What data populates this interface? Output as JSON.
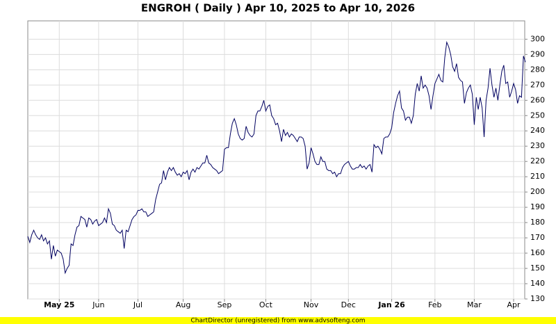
{
  "chart_data": {
    "type": "line",
    "title": "ENGROH ( Daily ) Apr 10, 2025 to Apr 10, 2026",
    "footer": "ChartDirector (unregistered) from www.advsofteng.com",
    "color": "#000060",
    "grid": true,
    "ylim": [
      130,
      312
    ],
    "yticks": [
      130,
      140,
      150,
      160,
      170,
      180,
      190,
      200,
      210,
      220,
      230,
      240,
      250,
      260,
      270,
      280,
      290,
      300
    ],
    "xticks": [
      {
        "value": 16,
        "label": "May 25"
      },
      {
        "value": 36,
        "label": "Jun"
      },
      {
        "value": 56,
        "label": "Jul"
      },
      {
        "value": 79,
        "label": "Aug"
      },
      {
        "value": 100,
        "label": "Sep"
      },
      {
        "value": 121,
        "label": "Oct"
      },
      {
        "value": 144,
        "label": "Nov"
      },
      {
        "value": 163,
        "label": "Dec"
      },
      {
        "value": 185,
        "label": "Jan 26"
      },
      {
        "value": 207,
        "label": "Feb"
      },
      {
        "value": 227,
        "label": "Mar"
      },
      {
        "value": 247,
        "label": "Apr"
      }
    ],
    "values": [
      171,
      167,
      172,
      175,
      172,
      170,
      169,
      172,
      168,
      170,
      166,
      168,
      156,
      165,
      158,
      162,
      161,
      160,
      156,
      147,
      150,
      152,
      166,
      165,
      172,
      177,
      178,
      184,
      183,
      182,
      177,
      183,
      182,
      179,
      181,
      182,
      178,
      179,
      180,
      183,
      180,
      189,
      186,
      179,
      178,
      175,
      174,
      173,
      175,
      163,
      175,
      174,
      178,
      182,
      184,
      185,
      188,
      188,
      189,
      187,
      187,
      184,
      185,
      186,
      187,
      195,
      200,
      205,
      206,
      214,
      208,
      213,
      216,
      214,
      216,
      213,
      211,
      212,
      210,
      213,
      212,
      214,
      208,
      213,
      215,
      213,
      216,
      215,
      217,
      219,
      219,
      224,
      219,
      218,
      216,
      215,
      214,
      212,
      213,
      214,
      228,
      229,
      229,
      238,
      245,
      248,
      244,
      238,
      235,
      234,
      235,
      243,
      239,
      237,
      236,
      238,
      250,
      253,
      253,
      256,
      260,
      253,
      256,
      257,
      250,
      248,
      244,
      245,
      240,
      233,
      241,
      237,
      239,
      236,
      238,
      237,
      235,
      233,
      236,
      236,
      235,
      230,
      215,
      219,
      229,
      225,
      220,
      218,
      218,
      223,
      220,
      220,
      215,
      214,
      214,
      212,
      213,
      210,
      212,
      212,
      216,
      218,
      219,
      220,
      217,
      215,
      215,
      216,
      216,
      218,
      216,
      217,
      215,
      217,
      218,
      213,
      231,
      229,
      230,
      228,
      225,
      235,
      236,
      236,
      238,
      242,
      252,
      258,
      263,
      266,
      255,
      253,
      247,
      249,
      249,
      245,
      250,
      264,
      271,
      266,
      276,
      268,
      270,
      268,
      263,
      254,
      263,
      271,
      274,
      277,
      273,
      272,
      288,
      298,
      295,
      290,
      282,
      279,
      284,
      275,
      273,
      272,
      258,
      265,
      268,
      270,
      264,
      244,
      262,
      254,
      262,
      255,
      236,
      260,
      268,
      281,
      270,
      262,
      268,
      260,
      270,
      279,
      283,
      271,
      272,
      262,
      266,
      271,
      267,
      258,
      263,
      262,
      289,
      285
    ]
  }
}
